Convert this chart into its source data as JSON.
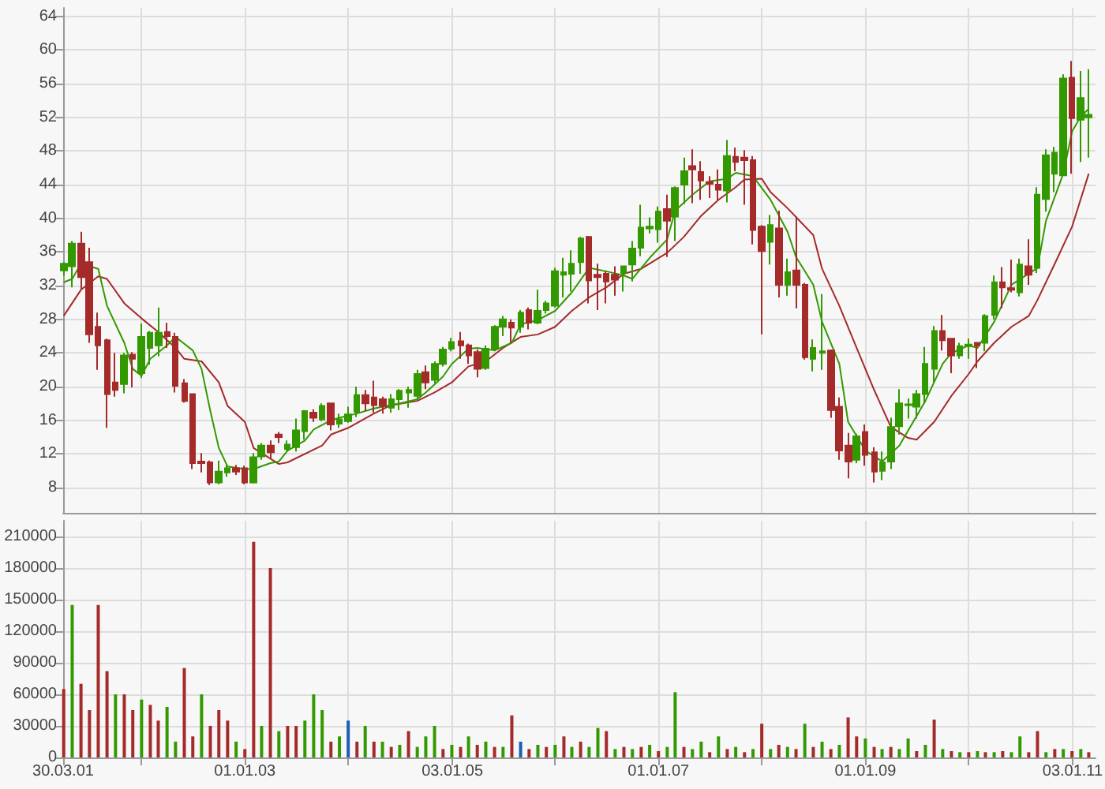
{
  "chart_data": [
    {
      "type": "candlestick",
      "tick_labels": "y",
      "grid": true,
      "marker": "none",
      "xlim": [
        "2001-03-30",
        "2011-03-25"
      ],
      "ylim": [
        5,
        65
      ],
      "xticks": [
        {
          "value": "2001-03-30",
          "label": null
        },
        {
          "value": "2002-01-01",
          "label": null
        },
        {
          "value": "2003-01-01",
          "label": null
        },
        {
          "value": "2004-01-01",
          "label": null
        },
        {
          "value": "2005-01-03",
          "label": null
        },
        {
          "value": "2006-01-01",
          "label": null
        },
        {
          "value": "2007-01-01",
          "label": null
        },
        {
          "value": "2008-01-01",
          "label": null
        },
        {
          "value": "2009-01-01",
          "label": null
        },
        {
          "value": "2010-01-01",
          "label": null
        },
        {
          "value": "2011-01-03",
          "label": null
        }
      ],
      "yticks": [
        8,
        12,
        16,
        20,
        24,
        28,
        32,
        36,
        40,
        44,
        48,
        52,
        56,
        60,
        64
      ],
      "x": [
        "2001-04",
        "2001-05",
        "2001-06",
        "2001-07",
        "2001-08",
        "2001-09",
        "2001-10",
        "2001-11",
        "2001-12",
        "2002-01",
        "2002-02",
        "2002-03",
        "2002-04",
        "2002-05",
        "2002-06",
        "2002-07",
        "2002-08",
        "2002-09",
        "2002-10",
        "2002-11",
        "2002-12",
        "2003-01",
        "2003-02",
        "2003-03",
        "2003-04",
        "2003-05",
        "2003-06",
        "2003-07",
        "2003-08",
        "2003-09",
        "2003-10",
        "2003-11",
        "2003-12",
        "2004-01",
        "2004-02",
        "2004-03",
        "2004-04",
        "2004-05",
        "2004-06",
        "2004-07",
        "2004-08",
        "2004-09",
        "2004-10",
        "2004-11",
        "2004-12",
        "2005-01",
        "2005-02",
        "2005-03",
        "2005-04",
        "2005-05",
        "2005-06",
        "2005-07",
        "2005-08",
        "2005-09",
        "2005-10",
        "2005-11",
        "2005-12",
        "2006-01",
        "2006-02",
        "2006-03",
        "2006-04",
        "2006-05",
        "2006-06",
        "2006-07",
        "2006-08",
        "2006-09",
        "2006-10",
        "2006-11",
        "2006-12",
        "2007-01",
        "2007-02",
        "2007-03",
        "2007-04",
        "2007-05",
        "2007-06",
        "2007-07",
        "2007-08",
        "2007-09",
        "2007-10",
        "2007-11",
        "2007-12",
        "2008-01",
        "2008-02",
        "2008-03",
        "2008-04",
        "2008-05",
        "2008-06",
        "2008-07",
        "2008-08",
        "2008-09",
        "2008-10",
        "2008-11",
        "2008-12",
        "2009-01",
        "2009-02",
        "2009-03",
        "2009-04",
        "2009-05",
        "2009-06",
        "2009-07",
        "2009-08",
        "2009-09",
        "2009-10",
        "2009-11",
        "2009-12",
        "2010-01",
        "2010-02",
        "2010-03",
        "2010-04",
        "2010-05",
        "2010-06",
        "2010-07",
        "2010-08",
        "2010-09",
        "2010-10",
        "2010-11",
        "2010-12",
        "2011-01",
        "2011-02",
        "2011-03"
      ],
      "ohlc": [
        [
          33.8,
          34.8,
          33.2,
          34.6
        ],
        [
          34.3,
          37.3,
          31.8,
          37
        ],
        [
          37,
          38.4,
          31.6,
          33
        ],
        [
          34.8,
          36.5,
          25.2,
          26.2
        ],
        [
          27.1,
          28.8,
          22,
          24.9
        ],
        [
          25.5,
          25.7,
          15.1,
          19.1
        ],
        [
          20.5,
          24,
          18.8,
          19.6
        ],
        [
          20.3,
          24,
          19.2,
          23.7
        ],
        [
          23.8,
          24.1,
          19.9,
          23.3
        ],
        [
          21.6,
          27.5,
          21,
          25.9
        ],
        [
          24.6,
          26.6,
          22.6,
          26.4
        ],
        [
          24.9,
          29.4,
          23.6,
          26.4
        ],
        [
          26.5,
          27.6,
          24.6,
          26
        ],
        [
          25.9,
          26.4,
          19.3,
          20.1
        ],
        [
          20.4,
          20.9,
          18.1,
          18.3
        ],
        [
          19.1,
          19.2,
          10.2,
          10.9
        ],
        [
          11.1,
          12.1,
          9.8,
          10.9
        ],
        [
          11,
          11.2,
          8.3,
          8.6
        ],
        [
          8.6,
          11.2,
          8.4,
          9.9
        ],
        [
          9.8,
          10.7,
          9.3,
          10.3
        ],
        [
          10.3,
          10.7,
          9.5,
          9.9
        ],
        [
          10.3,
          10.6,
          8.4,
          8.6
        ],
        [
          8.6,
          12.1,
          8.5,
          11.6
        ],
        [
          11.7,
          13.3,
          11.3,
          13
        ],
        [
          13,
          13.6,
          11.5,
          12.2
        ],
        [
          14.3,
          14.6,
          13.3,
          14
        ],
        [
          12.6,
          13.6,
          12.4,
          13.1
        ],
        [
          12.8,
          16.2,
          12.3,
          14.8
        ],
        [
          14.7,
          17.2,
          13.7,
          17.1
        ],
        [
          16.9,
          17.3,
          15.8,
          16.3
        ],
        [
          16.1,
          18,
          15.9,
          17.7
        ],
        [
          18,
          18.1,
          14.8,
          15.5
        ],
        [
          15.6,
          16.8,
          15.1,
          16.1
        ],
        [
          15.9,
          17.6,
          15.7,
          16.7
        ],
        [
          17,
          20,
          16.4,
          19
        ],
        [
          19,
          19.6,
          17.1,
          18
        ],
        [
          18.7,
          20.7,
          16.9,
          17.8
        ],
        [
          18.5,
          18.8,
          16.8,
          17.7
        ],
        [
          17.5,
          19.1,
          16.9,
          18.5
        ],
        [
          18.5,
          19.7,
          17.2,
          19.5
        ],
        [
          19.3,
          20,
          17.5,
          19.6
        ],
        [
          18.9,
          22,
          18.6,
          21.5
        ],
        [
          21.7,
          22.5,
          19.7,
          20.5
        ],
        [
          20.8,
          23,
          20.4,
          22.7
        ],
        [
          22.7,
          24.7,
          22.4,
          24.4
        ],
        [
          24.5,
          25.8,
          24.2,
          25.3
        ],
        [
          25.4,
          26.5,
          23.3,
          24.9
        ],
        [
          24.9,
          25.1,
          22.7,
          23.7
        ],
        [
          24.1,
          24.4,
          21.1,
          22.1
        ],
        [
          22.2,
          24.9,
          22,
          24.5
        ],
        [
          24.5,
          27.3,
          24.2,
          27.1
        ],
        [
          27.1,
          28.4,
          26,
          28
        ],
        [
          27.6,
          28,
          25.2,
          27
        ],
        [
          27.1,
          29.1,
          26.4,
          28.8
        ],
        [
          29.1,
          29.4,
          26.8,
          27.6
        ],
        [
          27.6,
          31.5,
          27.4,
          29
        ],
        [
          29.1,
          30.2,
          28.7,
          29.9
        ],
        [
          29.6,
          34.1,
          29.4,
          33.7
        ],
        [
          33.3,
          35.3,
          30.6,
          33.6
        ],
        [
          33.4,
          36.2,
          31.3,
          34.6
        ],
        [
          34.8,
          37.8,
          33.4,
          37.6
        ],
        [
          37.8,
          37.9,
          29.9,
          32.6
        ],
        [
          33.3,
          34.6,
          29.1,
          33
        ],
        [
          33.4,
          33.7,
          29.9,
          32.5
        ],
        [
          33.3,
          34.3,
          30.8,
          32.7
        ],
        [
          33.5,
          34.4,
          31.3,
          34.3
        ],
        [
          34.5,
          37.3,
          32.5,
          36.4
        ],
        [
          36.5,
          41.6,
          35.5,
          38.9
        ],
        [
          38.8,
          40.1,
          38.2,
          39
        ],
        [
          38.7,
          41.4,
          37.1,
          40.8
        ],
        [
          41.1,
          42.8,
          35.4,
          39.7
        ],
        [
          40.2,
          43.8,
          37.3,
          43.6
        ],
        [
          44,
          47.2,
          41.7,
          45.6
        ],
        [
          46.2,
          48.2,
          41.8,
          45.8
        ],
        [
          45.5,
          46.8,
          42.2,
          44.5
        ],
        [
          44.3,
          45,
          42.4,
          44.1
        ],
        [
          44,
          45.8,
          42.2,
          43.4
        ],
        [
          43.3,
          49.3,
          41.9,
          47.4
        ],
        [
          47.3,
          48.4,
          45.6,
          46.7
        ],
        [
          47.2,
          48.1,
          41.6,
          46.9
        ],
        [
          46.9,
          47.4,
          36.9,
          38.6
        ],
        [
          39,
          39.2,
          26.2,
          36.1
        ],
        [
          37.2,
          40.4,
          34.5,
          39.2
        ],
        [
          38.8,
          40.9,
          30.6,
          32.1
        ],
        [
          32.1,
          35.2,
          30.8,
          33.6
        ],
        [
          33.8,
          40.2,
          29.3,
          32.1
        ],
        [
          32.1,
          32.3,
          23.2,
          23.5
        ],
        [
          23.3,
          25.6,
          21.8,
          24.6
        ],
        [
          24,
          31,
          22,
          24.2
        ],
        [
          24.3,
          24.4,
          16.3,
          17.2
        ],
        [
          17.6,
          18.7,
          11.3,
          12.4
        ],
        [
          13,
          14.5,
          9.1,
          11.1
        ],
        [
          11.3,
          14.4,
          10.9,
          14.1
        ],
        [
          14.6,
          15.5,
          10.6,
          11.9
        ],
        [
          12.2,
          12.8,
          8.6,
          9.9
        ],
        [
          10,
          12.3,
          8.9,
          11
        ],
        [
          11.1,
          16.3,
          10.2,
          15.2
        ],
        [
          15.3,
          19.7,
          14.3,
          18
        ],
        [
          17.8,
          18.6,
          16.2,
          17.9
        ],
        [
          17.6,
          19.6,
          16.2,
          19.1
        ],
        [
          19.1,
          24.7,
          18,
          22.7
        ],
        [
          22.1,
          27.2,
          20.4,
          26.6
        ],
        [
          26.6,
          28.5,
          24.3,
          25.5
        ],
        [
          25.7,
          25.8,
          21.6,
          23.7
        ],
        [
          23.7,
          25.2,
          23.3,
          24.8
        ],
        [
          24.8,
          25.7,
          23.3,
          25
        ],
        [
          25.2,
          25.2,
          22.2,
          24.9
        ],
        [
          25.2,
          28.6,
          24.2,
          28.4
        ],
        [
          28.5,
          33.2,
          28,
          32.4
        ],
        [
          32.4,
          34.2,
          29.3,
          31.8
        ],
        [
          31.7,
          35.1,
          31.2,
          31.5
        ],
        [
          31.2,
          35.2,
          30.7,
          34.5
        ],
        [
          34.3,
          37.5,
          32.1,
          33.3
        ],
        [
          34.1,
          43.7,
          33.5,
          42.8
        ],
        [
          42.3,
          48.2,
          40.8,
          47.5
        ],
        [
          45.3,
          48.5,
          43.1,
          47.8
        ],
        [
          45.1,
          57.1,
          45,
          56.6
        ],
        [
          56.7,
          58.7,
          45.3,
          51.9
        ],
        [
          51.7,
          57.5,
          46.7,
          54.3
        ],
        [
          52,
          57.7,
          47.2,
          52.3
        ]
      ],
      "colors": [
        "#339900",
        "#339900",
        "#a52a2a",
        "#a52a2a",
        "#a52a2a",
        "#a52a2a",
        "#a52a2a",
        "#339900",
        "#a52a2a",
        "#339900",
        "#339900",
        "#339900",
        "#a52a2a",
        "#a52a2a",
        "#a52a2a",
        "#a52a2a",
        "#a52a2a",
        "#a52a2a",
        "#339900",
        "#339900",
        "#a52a2a",
        "#a52a2a",
        "#339900",
        "#339900",
        "#a52a2a",
        "#a52a2a",
        "#339900",
        "#339900",
        "#339900",
        "#a52a2a",
        "#339900",
        "#a52a2a",
        "#339900",
        "#339900",
        "#339900",
        "#a52a2a",
        "#a52a2a",
        "#a52a2a",
        "#339900",
        "#339900",
        "#339900",
        "#339900",
        "#a52a2a",
        "#339900",
        "#339900",
        "#339900",
        "#a52a2a",
        "#a52a2a",
        "#a52a2a",
        "#339900",
        "#339900",
        "#339900",
        "#a52a2a",
        "#339900",
        "#a52a2a",
        "#339900",
        "#339900",
        "#339900",
        "#339900",
        "#339900",
        "#339900",
        "#a52a2a",
        "#a52a2a",
        "#a52a2a",
        "#a52a2a",
        "#339900",
        "#339900",
        "#339900",
        "#339900",
        "#339900",
        "#a52a2a",
        "#339900",
        "#339900",
        "#a52a2a",
        "#a52a2a",
        "#a52a2a",
        "#a52a2a",
        "#339900",
        "#a52a2a",
        "#a52a2a",
        "#a52a2a",
        "#a52a2a",
        "#339900",
        "#a52a2a",
        "#339900",
        "#a52a2a",
        "#a52a2a",
        "#339900",
        "#339900",
        "#a52a2a",
        "#a52a2a",
        "#a52a2a",
        "#339900",
        "#a52a2a",
        "#a52a2a",
        "#339900",
        "#339900",
        "#339900",
        "#339900",
        "#339900",
        "#339900",
        "#339900",
        "#a52a2a",
        "#a52a2a",
        "#339900",
        "#339900",
        "#a52a2a",
        "#339900",
        "#339900",
        "#a52a2a",
        "#a52a2a",
        "#339900",
        "#a52a2a",
        "#339900",
        "#339900",
        "#339900",
        "#339900",
        "#a52a2a",
        "#339900",
        "#339900"
      ],
      "series": [
        {
          "type": "line",
          "color": "#339900",
          "x": [
            "2001-04",
            "2001-05",
            "2001-06",
            "2001-08",
            "2001-09",
            "2001-11",
            "2001-12",
            "2002-01",
            "2002-02",
            "2002-04",
            "2002-05",
            "2002-07",
            "2002-08",
            "2002-09",
            "2002-10",
            "2002-11",
            "2003-01",
            "2003-02",
            "2003-04",
            "2003-05",
            "2003-06",
            "2003-08",
            "2003-09",
            "2003-11",
            "2003-12",
            "2004-02",
            "2004-04",
            "2004-07",
            "2004-09",
            "2004-10",
            "2004-12",
            "2005-01",
            "2005-03",
            "2005-04",
            "2005-06",
            "2005-08",
            "2005-09",
            "2005-11",
            "2006-01",
            "2006-03",
            "2006-05",
            "2006-07",
            "2006-09",
            "2006-10",
            "2006-12",
            "2007-02",
            "2007-03",
            "2007-05",
            "2007-07",
            "2007-09",
            "2007-10",
            "2007-12",
            "2008-02",
            "2008-04",
            "2008-05",
            "2008-07",
            "2008-08",
            "2008-10",
            "2008-11",
            "2009-01",
            "2009-03",
            "2009-05",
            "2009-08",
            "2009-10",
            "2009-11",
            "2010-01",
            "2010-02",
            "2010-04",
            "2010-06",
            "2010-09",
            "2010-10",
            "2010-12",
            "2011-01",
            "2011-02",
            "2011-03"
          ],
          "values": [
            32.4,
            32.8,
            34.6,
            34.0,
            29.6,
            25.2,
            22.1,
            21.3,
            23.3,
            24.9,
            25.9,
            24.3,
            22.1,
            17.1,
            12.7,
            10.5,
            10.2,
            10.2,
            10.9,
            11.1,
            12.4,
            13.6,
            14.9,
            16.0,
            16.3,
            16.8,
            17.4,
            18.0,
            18.5,
            19.3,
            21.2,
            22.7,
            24.5,
            24.6,
            24.3,
            25.2,
            27.4,
            27.9,
            29.0,
            31.2,
            34.1,
            33.7,
            33.2,
            32.8,
            35.3,
            37.5,
            40.9,
            42.8,
            44.4,
            44.7,
            45.4,
            45.0,
            42.2,
            38.4,
            35.4,
            32.1,
            27.7,
            22.7,
            15.8,
            12.4,
            11.1,
            13.0,
            18.3,
            22.7,
            24.0,
            24.9,
            24.6,
            27.7,
            32.1,
            34.1,
            39.7,
            45.3,
            50.3,
            52.1,
            53.0
          ]
        },
        {
          "type": "line",
          "color": "#a52a2a",
          "x": [
            "2001-04",
            "2001-06",
            "2001-08",
            "2001-09",
            "2001-11",
            "2002-01",
            "2002-03",
            "2002-05",
            "2002-06",
            "2002-08",
            "2002-10",
            "2002-11",
            "2003-01",
            "2003-02",
            "2003-05",
            "2003-06",
            "2003-10",
            "2003-11",
            "2004-01",
            "2004-04",
            "2004-06",
            "2004-09",
            "2004-11",
            "2005-01",
            "2005-03",
            "2005-05",
            "2005-07",
            "2005-09",
            "2005-11",
            "2006-01",
            "2006-03",
            "2006-05",
            "2006-07",
            "2006-09",
            "2006-11",
            "2007-02",
            "2007-04",
            "2007-06",
            "2007-08",
            "2007-10",
            "2007-11",
            "2008-01",
            "2008-02",
            "2008-04",
            "2008-07",
            "2008-08",
            "2008-10",
            "2008-12",
            "2009-02",
            "2009-04",
            "2009-06",
            "2009-07",
            "2009-09",
            "2009-11",
            "2010-01",
            "2010-02",
            "2010-04",
            "2010-06",
            "2010-08",
            "2010-09",
            "2010-11",
            "2011-01",
            "2011-03"
          ],
          "values": [
            28.4,
            31.5,
            33.1,
            32.8,
            29.9,
            28.1,
            26.5,
            24.6,
            23.3,
            23.0,
            20.5,
            17.7,
            15.8,
            12.7,
            10.8,
            11.0,
            13.0,
            14.3,
            15.1,
            16.8,
            17.8,
            18.3,
            19.3,
            20.5,
            22.4,
            23.0,
            24.6,
            25.9,
            26.2,
            27.1,
            29.0,
            30.6,
            31.8,
            33.4,
            34.0,
            35.9,
            37.8,
            40.3,
            42.2,
            43.7,
            44.6,
            44.7,
            43.1,
            41.2,
            38.0,
            34.0,
            29.6,
            24.6,
            19.6,
            15.2,
            13.9,
            13.7,
            15.8,
            18.9,
            21.5,
            23.0,
            25.2,
            27.1,
            28.4,
            30.3,
            34.6,
            39.0,
            45.3
          ]
        }
      ]
    },
    {
      "type": "bar",
      "grid": true,
      "xlim": [
        "2001-03-30",
        "2011-03-25"
      ],
      "ylim": [
        0,
        225000
      ],
      "xticks": [
        {
          "value": "2001-03-30",
          "label": "30.03.01"
        },
        {
          "value": "2002-01-01",
          "label": null
        },
        {
          "value": "2003-01-01",
          "label": "01.01.03"
        },
        {
          "value": "2004-01-01",
          "label": null
        },
        {
          "value": "2005-01-03",
          "label": "03.01.05"
        },
        {
          "value": "2006-01-01",
          "label": null
        },
        {
          "value": "2007-01-01",
          "label": "01.01.07"
        },
        {
          "value": "2008-01-01",
          "label": null
        },
        {
          "value": "2009-01-01",
          "label": "01.01.09"
        },
        {
          "value": "2010-01-01",
          "label": null
        },
        {
          "value": "2011-01-03",
          "label": "03.01.11"
        }
      ],
      "yticks": [
        0,
        30000,
        60000,
        90000,
        120000,
        150000,
        180000,
        210000
      ],
      "x": [
        "2001-04",
        "2001-05",
        "2001-06",
        "2001-07",
        "2001-08",
        "2001-09",
        "2001-10",
        "2001-11",
        "2001-12",
        "2002-01",
        "2002-02",
        "2002-03",
        "2002-04",
        "2002-05",
        "2002-06",
        "2002-07",
        "2002-08",
        "2002-09",
        "2002-10",
        "2002-11",
        "2002-12",
        "2003-01",
        "2003-02",
        "2003-03",
        "2003-04",
        "2003-05",
        "2003-06",
        "2003-07",
        "2003-08",
        "2003-09",
        "2003-10",
        "2003-11",
        "2003-12",
        "2004-01",
        "2004-02",
        "2004-03",
        "2004-04",
        "2004-05",
        "2004-06",
        "2004-07",
        "2004-08",
        "2004-09",
        "2004-10",
        "2004-11",
        "2004-12",
        "2005-01",
        "2005-02",
        "2005-03",
        "2005-04",
        "2005-05",
        "2005-06",
        "2005-07",
        "2005-08",
        "2005-09",
        "2005-10",
        "2005-11",
        "2005-12",
        "2006-01",
        "2006-02",
        "2006-03",
        "2006-04",
        "2006-05",
        "2006-06",
        "2006-07",
        "2006-08",
        "2006-09",
        "2006-10",
        "2006-11",
        "2006-12",
        "2007-01",
        "2007-02",
        "2007-03",
        "2007-04",
        "2007-05",
        "2007-06",
        "2007-07",
        "2007-08",
        "2007-09",
        "2007-10",
        "2007-11",
        "2007-12",
        "2008-01",
        "2008-02",
        "2008-03",
        "2008-04",
        "2008-05",
        "2008-06",
        "2008-07",
        "2008-08",
        "2008-09",
        "2008-10",
        "2008-11",
        "2008-12",
        "2009-01",
        "2009-02",
        "2009-03",
        "2009-04",
        "2009-05",
        "2009-06",
        "2009-07",
        "2009-08",
        "2009-09",
        "2009-10",
        "2009-11",
        "2009-12",
        "2010-01",
        "2010-02",
        "2010-03",
        "2010-04",
        "2010-05",
        "2010-06",
        "2010-07",
        "2010-08",
        "2010-09",
        "2010-10",
        "2010-11",
        "2010-12",
        "2011-01",
        "2011-02",
        "2011-03"
      ],
      "values": [
        65000,
        145000,
        70000,
        45000,
        145000,
        82000,
        60000,
        60000,
        45000,
        55000,
        50000,
        35000,
        48000,
        15000,
        85000,
        20000,
        60000,
        30000,
        45000,
        35000,
        15000,
        8000,
        205000,
        30000,
        180000,
        25000,
        30000,
        30000,
        35000,
        60000,
        45000,
        15000,
        20000,
        35000,
        15000,
        30000,
        15000,
        15000,
        10000,
        12000,
        25000,
        10000,
        20000,
        30000,
        8000,
        12000,
        10000,
        20000,
        12000,
        15000,
        10000,
        10000,
        40000,
        15000,
        8000,
        12000,
        10000,
        12000,
        20000,
        10000,
        15000,
        10000,
        28000,
        25000,
        8000,
        10000,
        8000,
        10000,
        12000,
        6000,
        10000,
        62000,
        10000,
        8000,
        15000,
        5000,
        20000,
        8000,
        10000,
        5000,
        8000,
        32000,
        8000,
        12000,
        10000,
        8000,
        32000,
        10000,
        15000,
        8000,
        12000,
        38000,
        20000,
        18000,
        10000,
        8000,
        10000,
        8000,
        18000,
        6000,
        12000,
        36000,
        8000,
        6000,
        5000,
        5000,
        6000,
        5000,
        5000,
        6000,
        5000,
        20000,
        5000,
        25000,
        5000,
        8000,
        8000,
        6000,
        8000,
        5000
      ],
      "colors": [
        "#a52a2a",
        "#339900",
        "#a52a2a",
        "#a52a2a",
        "#a52a2a",
        "#a52a2a",
        "#339900",
        "#a52a2a",
        "#a52a2a",
        "#339900",
        "#a52a2a",
        "#a52a2a",
        "#339900",
        "#339900",
        "#a52a2a",
        "#a52a2a",
        "#339900",
        "#a52a2a",
        "#a52a2a",
        "#a52a2a",
        "#339900",
        "#a52a2a",
        "#a52a2a",
        "#339900",
        "#a52a2a",
        "#339900",
        "#a52a2a",
        "#a52a2a",
        "#339900",
        "#339900",
        "#339900",
        "#a52a2a",
        "#339900",
        "#1a5fb4",
        "#a52a2a",
        "#339900",
        "#a52a2a",
        "#339900",
        "#a52a2a",
        "#339900",
        "#a52a2a",
        "#339900",
        "#339900",
        "#339900",
        "#a52a2a",
        "#339900",
        "#a52a2a",
        "#339900",
        "#a52a2a",
        "#339900",
        "#a52a2a",
        "#339900",
        "#a52a2a",
        "#1a5fb4",
        "#a52a2a",
        "#339900",
        "#a52a2a",
        "#339900",
        "#a52a2a",
        "#339900",
        "#a52a2a",
        "#339900",
        "#339900",
        "#a52a2a",
        "#339900",
        "#a52a2a",
        "#339900",
        "#a52a2a",
        "#339900",
        "#a52a2a",
        "#339900",
        "#339900",
        "#a52a2a",
        "#339900",
        "#339900",
        "#a52a2a",
        "#339900",
        "#a52a2a",
        "#339900",
        "#a52a2a",
        "#339900",
        "#a52a2a",
        "#339900",
        "#a52a2a",
        "#339900",
        "#a52a2a",
        "#339900",
        "#a52a2a",
        "#339900",
        "#a52a2a",
        "#339900",
        "#a52a2a",
        "#a52a2a",
        "#339900",
        "#a52a2a",
        "#339900",
        "#a52a2a",
        "#339900",
        "#339900",
        "#a52a2a",
        "#339900",
        "#a52a2a",
        "#339900",
        "#a52a2a",
        "#339900",
        "#a52a2a",
        "#339900",
        "#a52a2a",
        "#339900",
        "#a52a2a",
        "#339900",
        "#339900",
        "#a52a2a",
        "#a52a2a",
        "#339900",
        "#a52a2a",
        "#339900",
        "#a52a2a",
        "#339900",
        "#a52a2a"
      ]
    }
  ]
}
